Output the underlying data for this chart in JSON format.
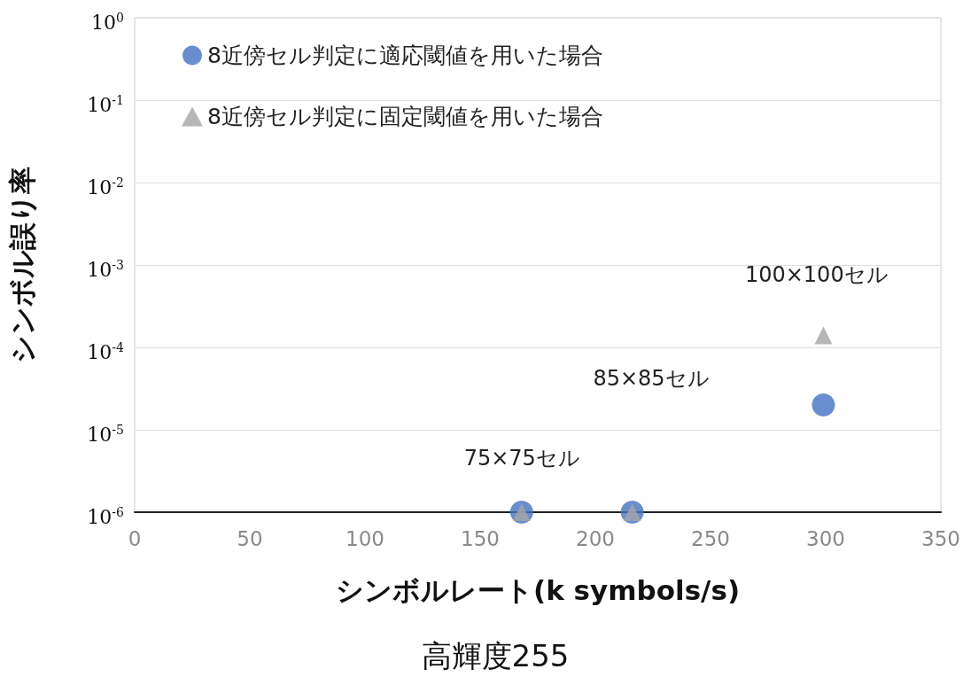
{
  "chart_data": {
    "type": "scatter",
    "title": "高輝度255",
    "xlabel": "シンボルレート(k symbols/s)",
    "ylabel": "シンボル誤り率",
    "x": [
      168,
      216,
      299
    ],
    "series": [
      {
        "name": "8近傍セル判定に適応閾値を用いた場合",
        "color": "#4472c4",
        "marker": "circle",
        "values": [
          1e-06,
          1e-06,
          2e-05
        ]
      },
      {
        "name": "8近傍セル判定に固定閾値を用いた場合",
        "color": "#a5a5a5",
        "marker": "triangle",
        "values": [
          1e-06,
          1e-06,
          0.00014
        ]
      }
    ],
    "annotations": [
      "75×75セル",
      "85×85セル",
      "100×100セル"
    ],
    "log": "y",
    "grid": "y",
    "legend": "top left",
    "xlim": [
      0,
      350
    ],
    "xticks": [
      0,
      50,
      100,
      150,
      200,
      250,
      300,
      350
    ],
    "ylim": [
      1e-06,
      1
    ],
    "yticks": [
      {
        "value": 1e-06,
        "label": "10$^{-6}$"
      },
      {
        "value": 1e-05,
        "label": "10$^{-5}$"
      },
      {
        "value": 0.0001,
        "label": "10$^{-4}$"
      },
      {
        "value": 0.001,
        "label": "10$^{-3}$"
      },
      {
        "value": 0.01,
        "label": "10$^{-2}$"
      },
      {
        "value": 0.1,
        "label": "10$^{-1}$"
      },
      {
        "value": 1,
        "label": "10$^{0}$"
      }
    ]
  }
}
